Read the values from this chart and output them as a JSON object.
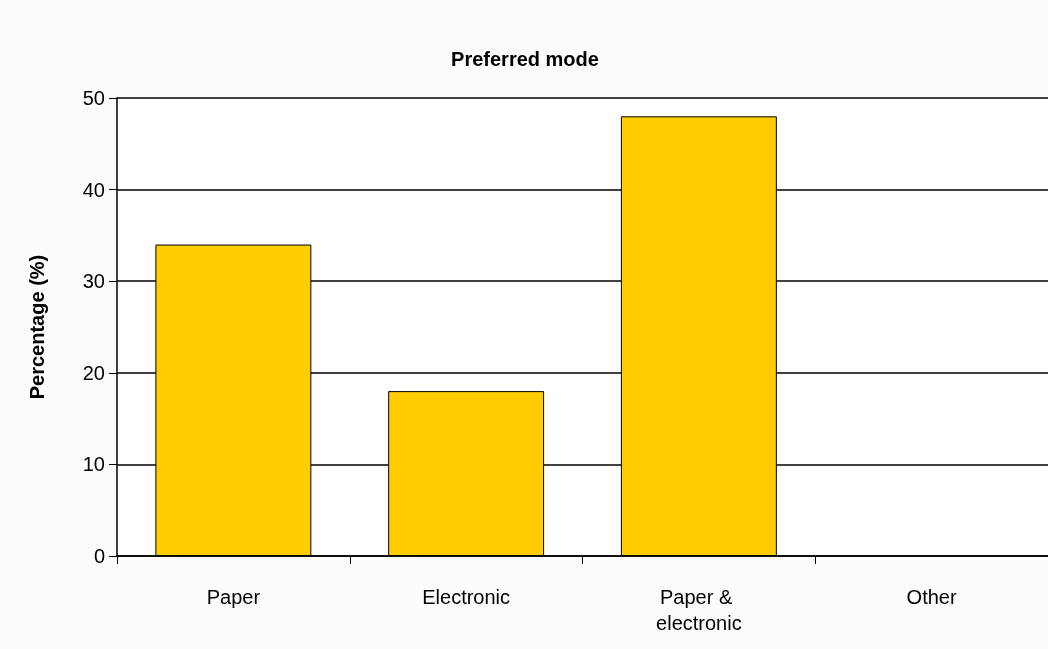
{
  "chart_data": {
    "type": "bar",
    "title": "Preferred mode",
    "ylabel": "Percentage (%)",
    "categories": [
      "Paper",
      "Electronic",
      "Paper & electronic",
      "Other"
    ],
    "values": [
      34,
      18,
      48,
      0
    ],
    "color": "#ffcc00",
    "ylim": [
      0,
      50
    ],
    "yticks": [
      0,
      10,
      20,
      30,
      40,
      50
    ],
    "grid": "y"
  }
}
